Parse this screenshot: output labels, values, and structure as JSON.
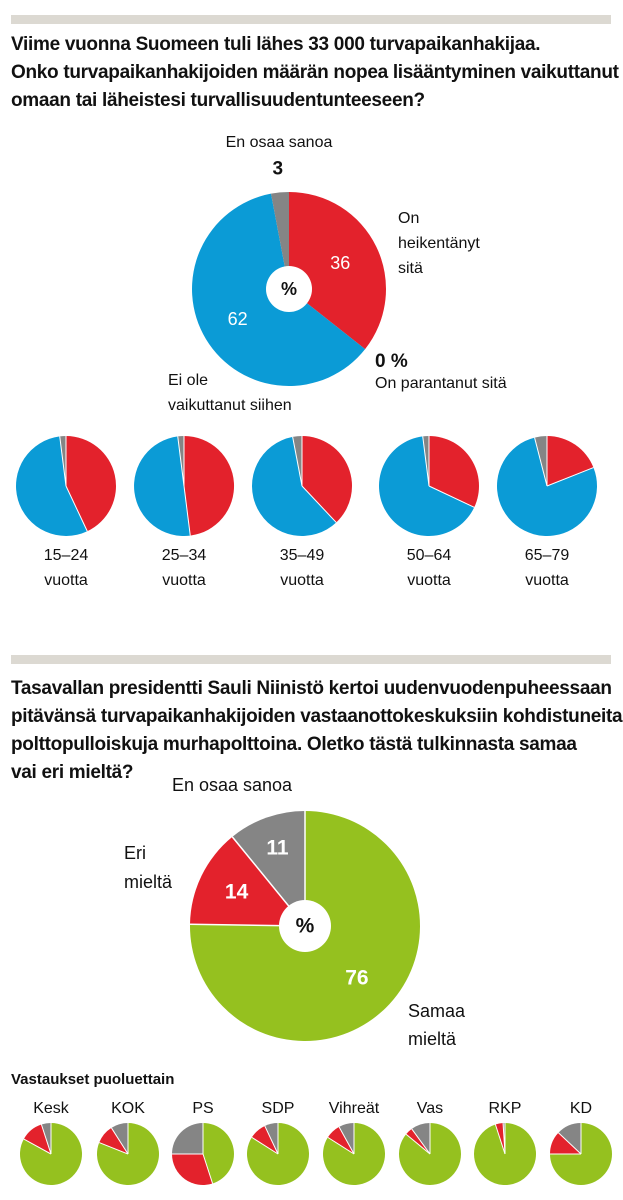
{
  "question1": {
    "lines": [
      "Viime vuonna Suomeen tuli lähes 33 000 turvapaikanhakijaa.",
      "Onko turvapaikanhakijoiden määrän nopea lisääntyminen vaikuttanut",
      "omaan tai läheistesi turvallisuudentunteeseen?"
    ]
  },
  "question2": {
    "lines": [
      "Tasavallan presidentti Sauli Niinistö kertoi uudenvuodenpuheessaan",
      "pitävänsä turvapaikanhakijoiden vastaanottokeskuksiin kohdistuneita",
      "polttopulloiskuja murhapolttoina. Oletko tästä tulkinnasta samaa",
      "vai eri mieltä?"
    ]
  },
  "colors": {
    "red": "#e3222c",
    "blue": "#0b9bd6",
    "gray": "#858585",
    "green": "#95c11f",
    "rule": "#dcd9d2"
  },
  "chart_data": [
    {
      "type": "pie",
      "unit": "%",
      "center_label": "%",
      "slices": [
        {
          "label": "On heikentänyt sitä",
          "label_lines": [
            "On",
            "heikentänyt",
            "sitä"
          ],
          "value": 36,
          "value_label": "36",
          "color": "red"
        },
        {
          "label": "On parantanut sitä",
          "label_lines": [
            "On parantanut sitä"
          ],
          "value": 0,
          "value_label": "0 %",
          "color": "none"
        },
        {
          "label": "Ei ole vaikuttanut siihen",
          "label_lines": [
            "Ei ole",
            "vaikuttanut siihen"
          ],
          "value": 62,
          "value_label": "62",
          "color": "blue"
        },
        {
          "label": "En osaa sanoa",
          "label_lines": [
            "En osaa sanoa"
          ],
          "value": 3,
          "value_label": "3",
          "color": "gray"
        }
      ]
    },
    {
      "type": "pie",
      "small_multiples": true,
      "series_order": [
        "On heikentänyt sitä",
        "Ei ole vaikuttanut siihen",
        "En osaa sanoa"
      ],
      "groups": [
        {
          "label_lines": [
            "15–24",
            "vuotta"
          ],
          "values": [
            43,
            55,
            2
          ]
        },
        {
          "label_lines": [
            "25–34",
            "vuotta"
          ],
          "values": [
            48,
            50,
            2
          ]
        },
        {
          "label_lines": [
            "35–49",
            "vuotta"
          ],
          "values": [
            38,
            59,
            3
          ]
        },
        {
          "label_lines": [
            "50–64",
            "vuotta"
          ],
          "values": [
            32,
            66,
            2
          ]
        },
        {
          "label_lines": [
            "65–79",
            "vuotta"
          ],
          "values": [
            19,
            77,
            4
          ]
        }
      ]
    },
    {
      "type": "pie",
      "unit": "%",
      "center_label": "%",
      "slices": [
        {
          "label": "Samaa mieltä",
          "label_lines": [
            "Samaa",
            "mieltä"
          ],
          "value": 76,
          "value_label": "76",
          "color": "green"
        },
        {
          "label": "Eri mieltä",
          "label_lines": [
            "Eri",
            "mieltä"
          ],
          "value": 14,
          "value_label": "14",
          "color": "red"
        },
        {
          "label": "En osaa sanoa",
          "label_lines": [
            "En osaa sanoa"
          ],
          "value": 11,
          "value_label": "11",
          "color": "gray"
        }
      ]
    },
    {
      "type": "pie",
      "small_multiples": true,
      "title": "Vastaukset puoluettain",
      "series_order": [
        "Samaa mieltä",
        "Eri mieltä",
        "En osaa sanoa"
      ],
      "groups": [
        {
          "label": "Kesk",
          "values": [
            83,
            12,
            5
          ]
        },
        {
          "label": "KOK",
          "values": [
            81,
            10,
            9
          ]
        },
        {
          "label": "PS",
          "values": [
            45,
            30,
            25
          ]
        },
        {
          "label": "SDP",
          "values": [
            84,
            9,
            7
          ]
        },
        {
          "label": "Vihreät",
          "values": [
            84,
            8,
            8
          ]
        },
        {
          "label": "Vas",
          "values": [
            86,
            4,
            10
          ]
        },
        {
          "label": "RKP",
          "values": [
            95,
            4,
            1
          ]
        },
        {
          "label": "KD",
          "values": [
            75,
            12,
            13
          ]
        }
      ]
    }
  ]
}
